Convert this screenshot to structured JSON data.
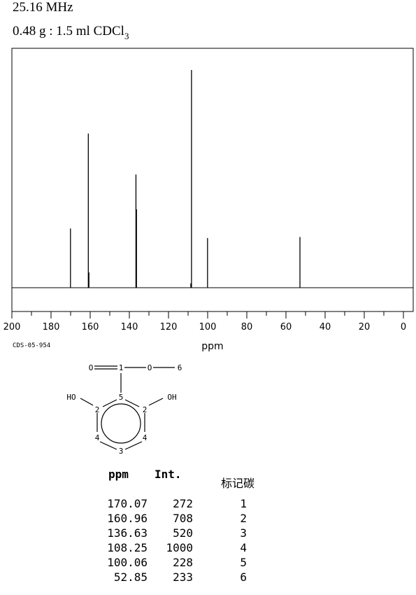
{
  "header": {
    "frequency": "25.16 MHz",
    "sample_prefix": "0.48 g : 1.5 ml CDCl",
    "sample_sub": "3"
  },
  "chart_data": {
    "type": "bar",
    "xlabel": "ppm",
    "xlim": [
      200,
      0
    ],
    "xticks": [
      200,
      180,
      160,
      140,
      120,
      100,
      80,
      60,
      40,
      20,
      0
    ],
    "ylim": [
      0,
      1000
    ],
    "peaks": [
      {
        "ppm": 170.07,
        "intensity": 272
      },
      {
        "ppm": 160.96,
        "intensity": 708
      },
      {
        "ppm": 160.65,
        "intensity": 70
      },
      {
        "ppm": 136.63,
        "intensity": 520
      },
      {
        "ppm": 136.35,
        "intensity": 360
      },
      {
        "ppm": 108.25,
        "intensity": 1000
      },
      {
        "ppm": 108.6,
        "intensity": 20
      },
      {
        "ppm": 100.06,
        "intensity": 228
      },
      {
        "ppm": 52.85,
        "intensity": 233
      }
    ],
    "grid": false
  },
  "code": "CDS-05-954",
  "structure": {
    "labels": [
      {
        "id": "o-carbonyl",
        "text": "O"
      },
      {
        "id": "c1",
        "text": "1"
      },
      {
        "id": "o-ester",
        "text": "O"
      },
      {
        "id": "c6",
        "text": "6"
      },
      {
        "id": "ho",
        "text": "HO"
      },
      {
        "id": "oh",
        "text": "OH"
      },
      {
        "id": "c5",
        "text": "5"
      },
      {
        "id": "c2-left",
        "text": "2"
      },
      {
        "id": "c2-right",
        "text": "2"
      },
      {
        "id": "c4-left",
        "text": "4"
      },
      {
        "id": "c4-right",
        "text": "4"
      },
      {
        "id": "c3",
        "text": "3"
      }
    ]
  },
  "table": {
    "headers": {
      "ppm": "ppm",
      "int": "Int.",
      "carbon": "标记碳"
    },
    "rows": [
      {
        "ppm": "170.07",
        "int": "272",
        "carbon": "1"
      },
      {
        "ppm": "160.96",
        "int": "708",
        "carbon": "2"
      },
      {
        "ppm": "136.63",
        "int": "520",
        "carbon": "3"
      },
      {
        "ppm": "108.25",
        "int": "1000",
        "carbon": "4"
      },
      {
        "ppm": "100.06",
        "int": "228",
        "carbon": "5"
      },
      {
        "ppm": "52.85",
        "int": "233",
        "carbon": "6"
      }
    ]
  }
}
